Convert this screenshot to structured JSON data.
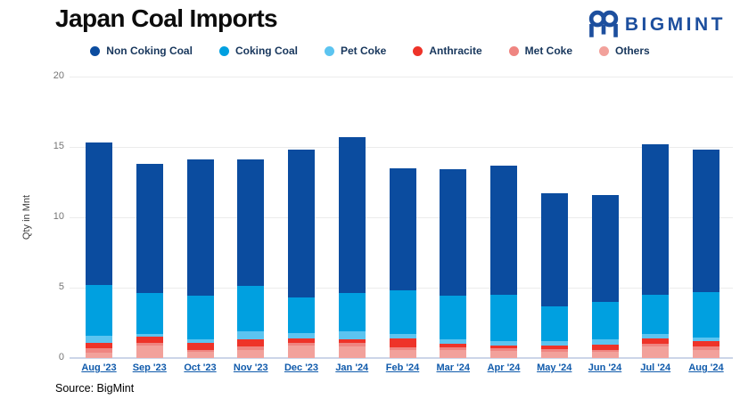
{
  "header": {
    "title": "Japan Coal Imports",
    "logo_text": "BIGMINT"
  },
  "footer": {
    "source": "Source: BigMint"
  },
  "colors": {
    "brand_navy": "#1d4f9e",
    "x_axis_label_blue": "#0f5aab",
    "legend_text": "#17365c"
  },
  "chart_data": {
    "type": "bar",
    "stacked": true,
    "title": "Japan Coal Imports",
    "ylabel": "Qty in Mnt",
    "xlabel": "",
    "ylim": [
      0,
      20
    ],
    "yticks": [
      0,
      5,
      10,
      15,
      20
    ],
    "grid": true,
    "legend_position": "top",
    "stack_note": "stacked bottom-to-top in reverse of series order (Others at bottom, Non Coking Coal on top)",
    "categories": [
      "Aug '23",
      "Sep '23",
      "Oct '23",
      "Nov '23",
      "Dec '23",
      "Jan '24",
      "Feb '24",
      "Mar '24",
      "Apr '24",
      "May '24",
      "Jun '24",
      "Jul '24",
      "Aug '24"
    ],
    "totals": [
      15.3,
      13.8,
      14.1,
      14.1,
      14.8,
      15.7,
      13.5,
      13.4,
      13.7,
      11.7,
      11.6,
      15.2,
      14.8
    ],
    "series": [
      {
        "name": "Non Coking Coal",
        "color": "#0b4c9f",
        "values": [
          10.1,
          9.2,
          9.7,
          9.0,
          10.5,
          11.1,
          8.7,
          9.0,
          9.2,
          8.0,
          7.6,
          10.7,
          10.1
        ]
      },
      {
        "name": "Coking Coal",
        "color": "#00a0e0",
        "values": [
          3.6,
          2.9,
          3.1,
          3.2,
          2.5,
          2.7,
          3.1,
          3.05,
          3.3,
          2.5,
          2.7,
          2.8,
          3.25
        ]
      },
      {
        "name": "Pet Coke",
        "color": "#5cc4f0",
        "values": [
          0.5,
          0.2,
          0.2,
          0.6,
          0.4,
          0.55,
          0.3,
          0.35,
          0.3,
          0.3,
          0.35,
          0.3,
          0.25
        ]
      },
      {
        "name": "Anthracite",
        "color": "#ee3329",
        "values": [
          0.4,
          0.4,
          0.5,
          0.5,
          0.3,
          0.3,
          0.65,
          0.25,
          0.2,
          0.25,
          0.35,
          0.4,
          0.4
        ]
      },
      {
        "name": "Met Coke",
        "color": "#ef8581",
        "values": [
          0.3,
          0.2,
          0.15,
          0.2,
          0.2,
          0.2,
          0.2,
          0.2,
          0.2,
          0.2,
          0.15,
          0.2,
          0.2
        ]
      },
      {
        "name": "Others",
        "color": "#f2a19b",
        "values": [
          0.4,
          0.9,
          0.45,
          0.6,
          0.9,
          0.85,
          0.55,
          0.55,
          0.5,
          0.45,
          0.45,
          0.8,
          0.6
        ]
      }
    ]
  }
}
